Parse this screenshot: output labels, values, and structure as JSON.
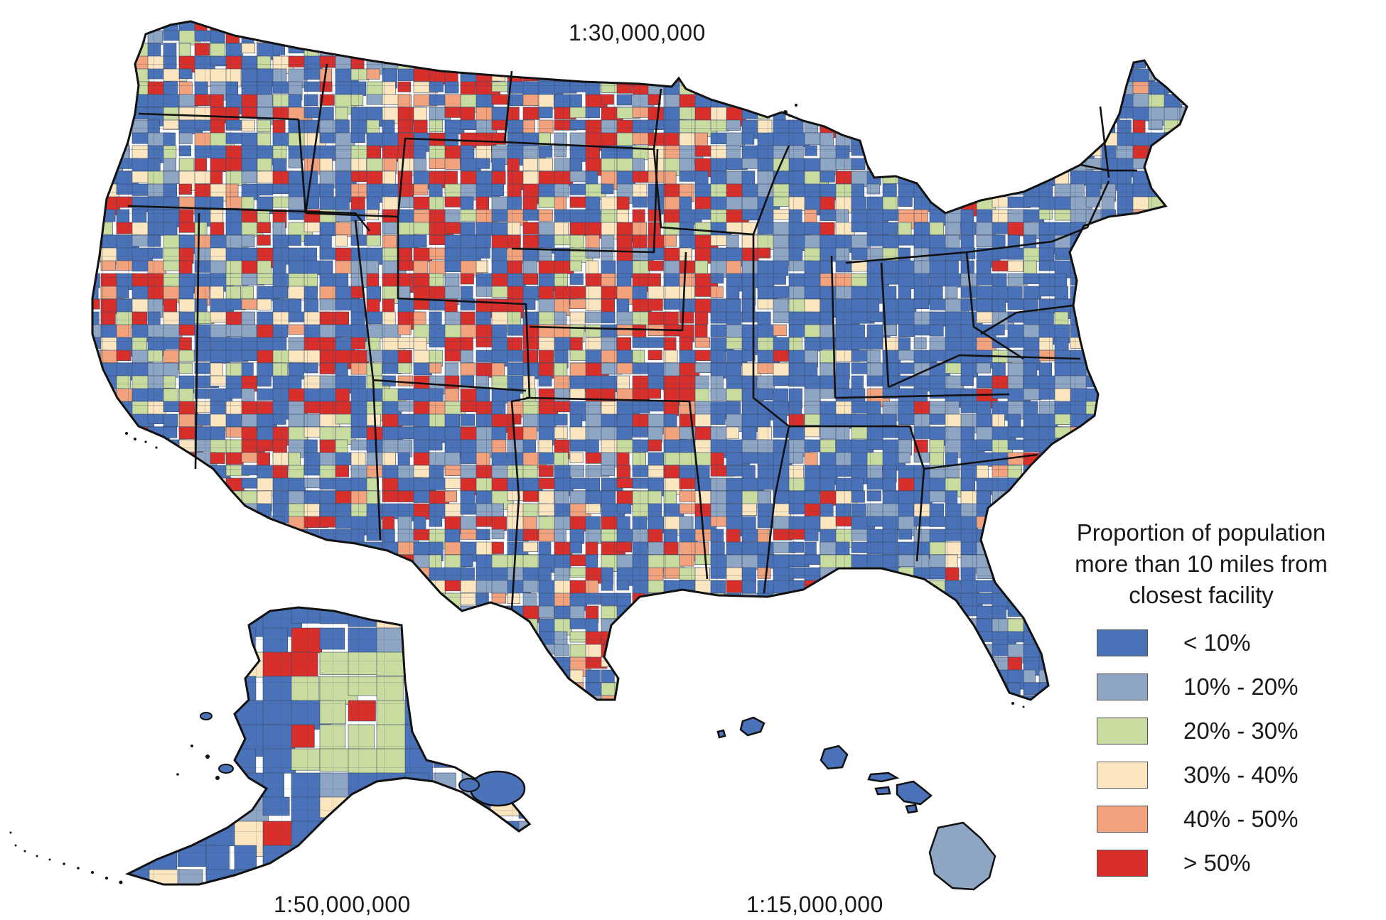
{
  "title": "",
  "map": {
    "scales": {
      "conus": "1:30,000,000",
      "alaska": "1:50,000,000",
      "hawaii": "1:15,000,000"
    },
    "regions_shown": [
      "Contiguous United States",
      "Alaska",
      "Hawaii"
    ],
    "unit": "county"
  },
  "legend": {
    "title_lines": [
      "Proportion of population",
      "more than 10 miles from",
      "closest facility"
    ],
    "items": [
      {
        "label": "< 10%",
        "color": "#4a72b8"
      },
      {
        "label": "10% - 20%",
        "color": "#8ea5c4"
      },
      {
        "label": "20% - 30%",
        "color": "#c9dca0"
      },
      {
        "label": "30% - 40%",
        "color": "#fbe6bf"
      },
      {
        "label": "40% - 50%",
        "color": "#f2a27c"
      },
      {
        "label": "> 50%",
        "color": "#d82f2b"
      }
    ]
  },
  "colors": {
    "boundary": "#111111",
    "county_line": "#3a4a66",
    "background": "#ffffff"
  }
}
